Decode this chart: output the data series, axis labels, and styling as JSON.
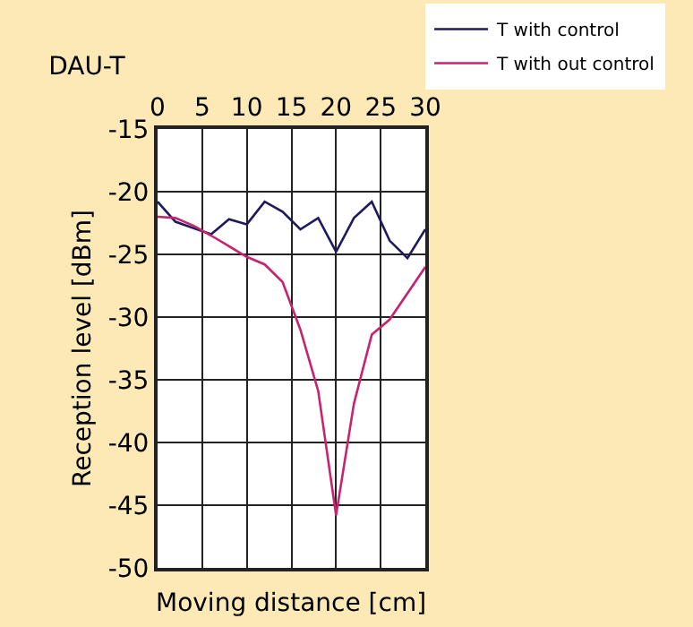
{
  "chart_data": {
    "type": "line",
    "title": "DAU-T",
    "xlabel": "Moving distance [cm]",
    "ylabel": "Reception level [dBm]",
    "xlim": [
      0,
      30
    ],
    "xticks": [
      0,
      5,
      10,
      15,
      20,
      25,
      30
    ],
    "ylim": [
      -50,
      -15
    ],
    "yticks": [
      -50,
      -45,
      -40,
      -35,
      -30,
      -25,
      -20,
      -15
    ],
    "grid": true,
    "legend": "top right",
    "marker": "none",
    "line_style": "solid",
    "series": [
      {
        "name": "T with control",
        "color": "#1f1a5e",
        "x": [
          0,
          2,
          6,
          8,
          10,
          12,
          14,
          16,
          18,
          20,
          22,
          24,
          26,
          28,
          30
        ],
        "values": [
          -20.8,
          -22.4,
          -23.4,
          -22.2,
          -22.6,
          -20.8,
          -21.6,
          -23,
          -22.1,
          -24.8,
          -22.1,
          -20.8,
          -23.9,
          -25.3,
          -23
        ]
      },
      {
        "name": "T with out control",
        "color": "#c8246e",
        "x": [
          0,
          2,
          4,
          6,
          10,
          12,
          14,
          16,
          18,
          20,
          22,
          24,
          26,
          30
        ],
        "values": [
          -22,
          -22.1,
          -22.7,
          -23.5,
          -25.2,
          -25.8,
          -27.2,
          -31,
          -35.9,
          -45.8,
          -36.9,
          -31.4,
          -30.2,
          -26
        ]
      }
    ]
  }
}
